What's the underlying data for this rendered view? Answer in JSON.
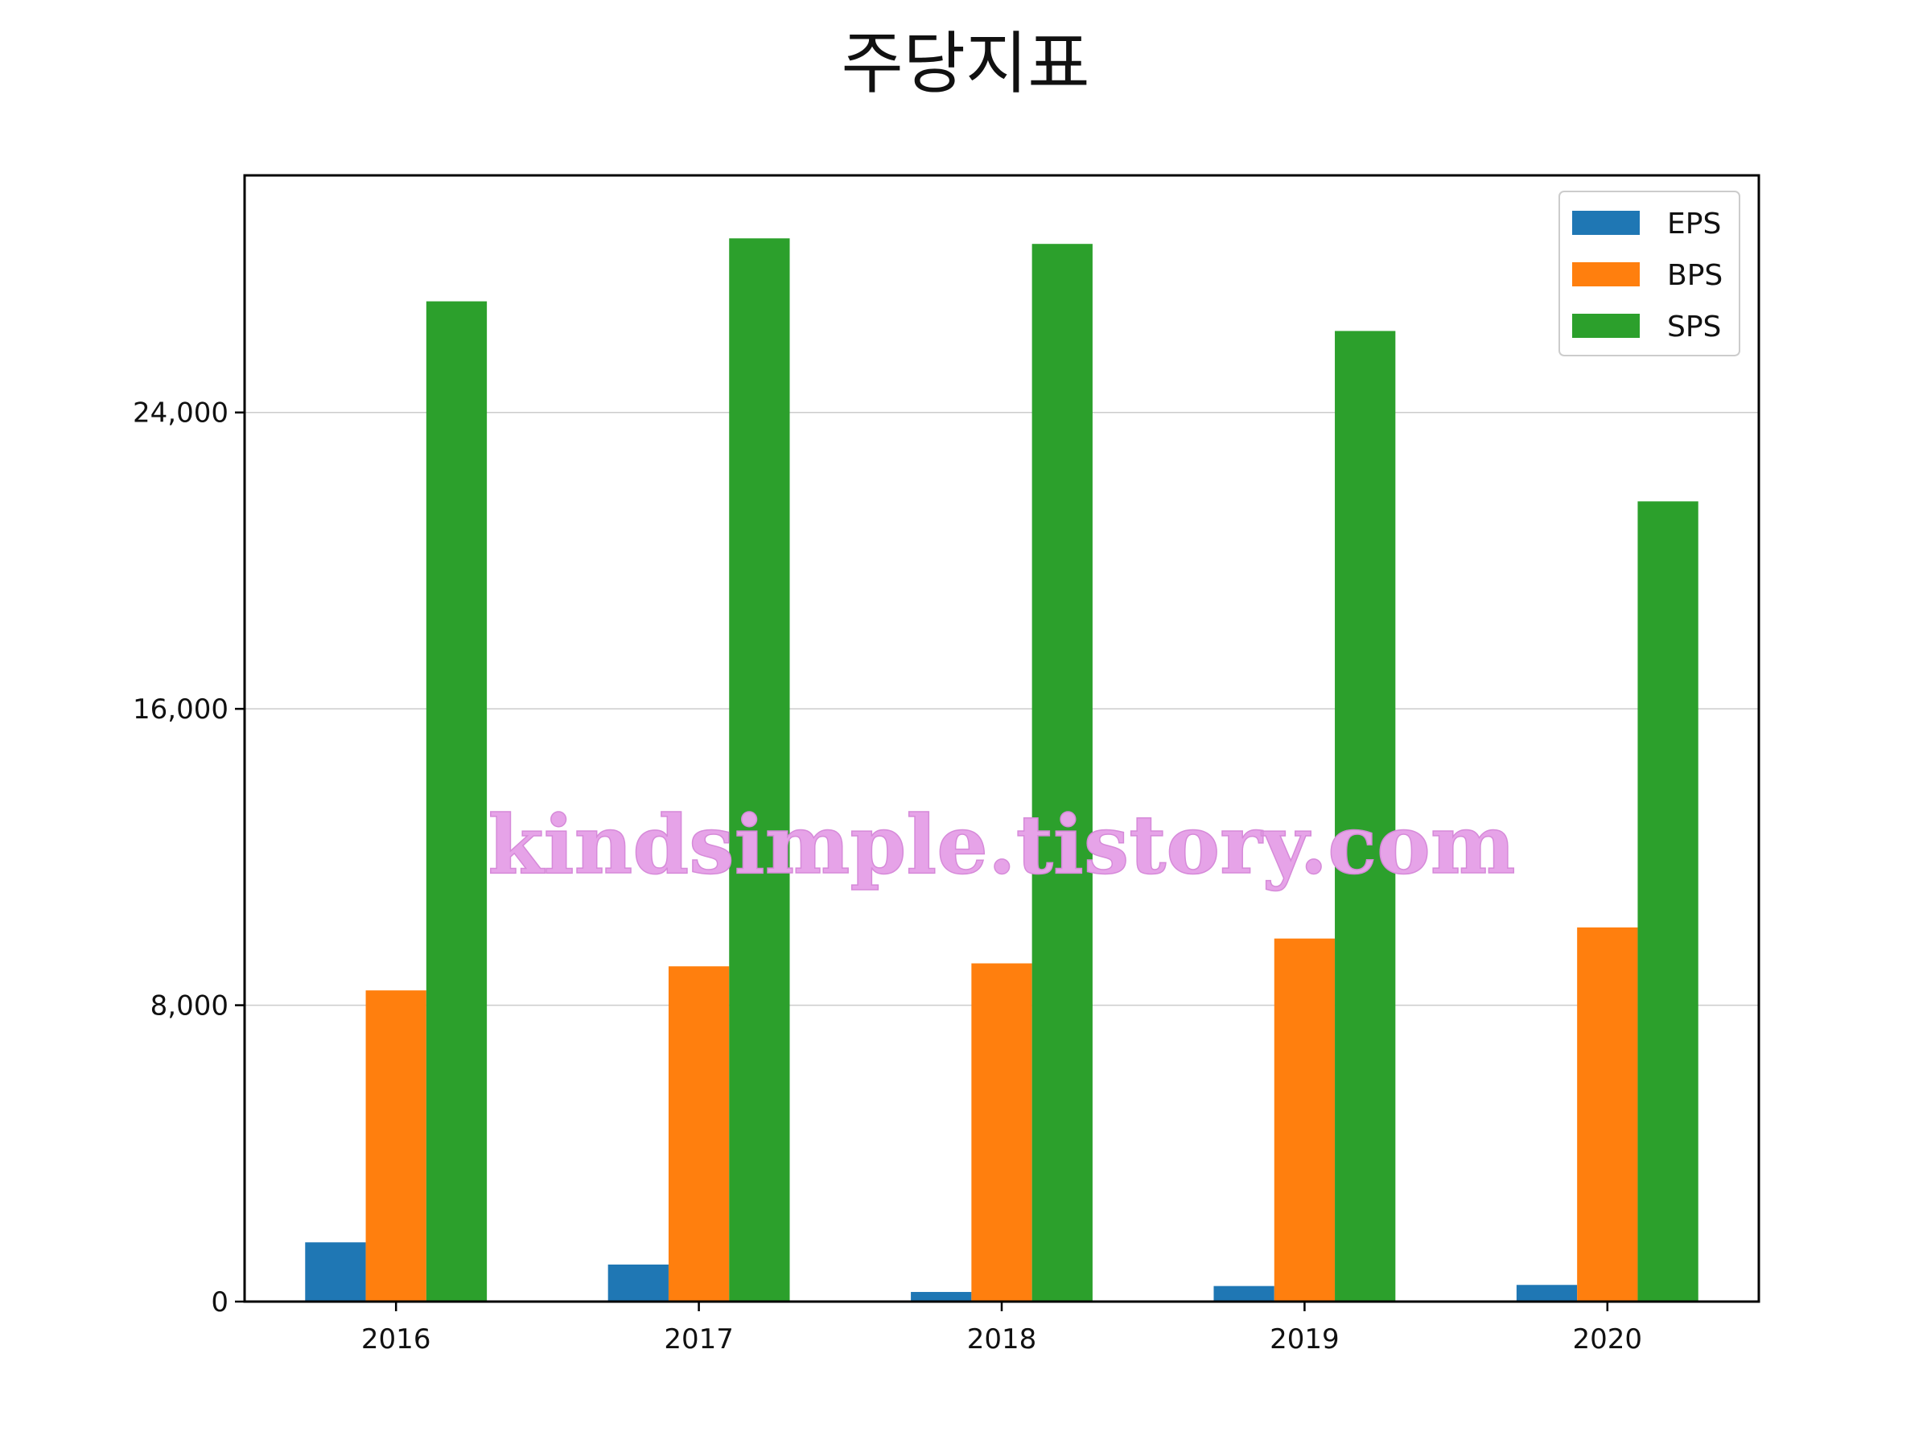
{
  "chart_data": {
    "type": "bar",
    "title": "주당지표",
    "xlabel": "",
    "ylabel": "",
    "categories": [
      "2016",
      "2017",
      "2018",
      "2019",
      "2020"
    ],
    "series": [
      {
        "name": "EPS",
        "color": "#1f77b4",
        "values": [
          1600,
          1000,
          260,
          420,
          450
        ]
      },
      {
        "name": "BPS",
        "color": "#ff7f0e",
        "values": [
          8400,
          9050,
          9130,
          9800,
          10100
        ]
      },
      {
        "name": "SPS",
        "color": "#2ca02c",
        "values": [
          27000,
          28700,
          28550,
          26200,
          21600
        ]
      }
    ],
    "ylim": [
      0,
      30400
    ],
    "yticks": [
      0,
      8000,
      16000,
      24000
    ],
    "ytick_labels": [
      "0",
      "8,000",
      "16,000",
      "24,000"
    ],
    "grid": "y-axis",
    "legend": "top-right",
    "watermark": "kindsimple.tistory.com"
  }
}
